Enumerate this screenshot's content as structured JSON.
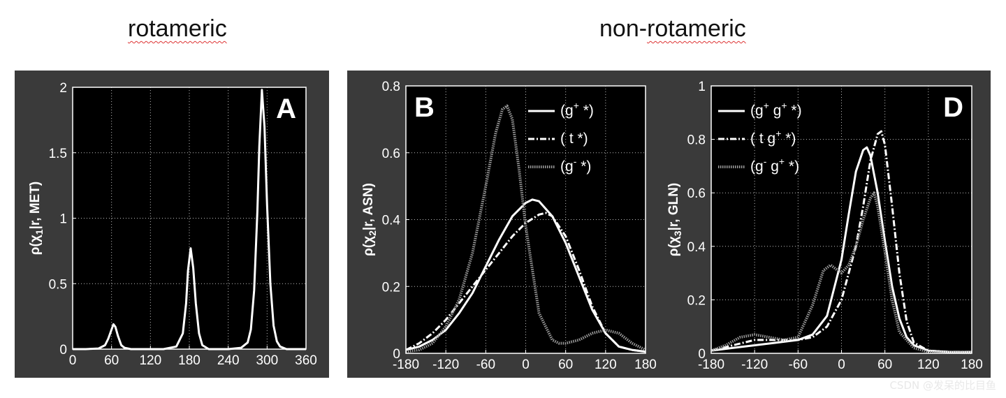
{
  "headings": {
    "left": "rotameric",
    "right": "non-rotameric"
  },
  "watermark": "CSDN @发呆的比目鱼",
  "colors": {
    "panel_bg": "#3a3a3a",
    "plot_bg": "#000000",
    "line": "#ffffff",
    "dotted_line": "#9a9a9a"
  },
  "chart_data": [
    {
      "type": "line",
      "panel_label": "A",
      "ylabel": "ρ(χ1|r, MET)",
      "xlim": [
        0,
        360
      ],
      "ylim": [
        0,
        2
      ],
      "xticks": [
        0,
        60,
        120,
        180,
        240,
        300,
        360
      ],
      "yticks": [
        0,
        0.5,
        1,
        1.5,
        2
      ],
      "ytick_labels": [
        "0",
        "0.5",
        "1",
        "1.5",
        "2"
      ],
      "grid": true,
      "series": [
        {
          "style": "solid",
          "x": [
            0,
            20,
            40,
            50,
            55,
            60,
            63,
            66,
            70,
            75,
            80,
            90,
            100,
            120,
            140,
            160,
            170,
            175,
            178,
            182,
            186,
            190,
            195,
            200,
            210,
            220,
            240,
            260,
            270,
            275,
            280,
            285,
            288,
            292,
            296,
            300,
            305,
            310,
            315,
            320,
            330,
            340,
            360
          ],
          "y": [
            0,
            0,
            0.005,
            0.03,
            0.08,
            0.15,
            0.19,
            0.17,
            0.1,
            0.03,
            0.01,
            0,
            0,
            0,
            0,
            0.02,
            0.12,
            0.35,
            0.6,
            0.77,
            0.62,
            0.35,
            0.12,
            0.03,
            0,
            0,
            0,
            0.01,
            0.05,
            0.15,
            0.45,
            1.05,
            1.55,
            1.98,
            1.7,
            1.1,
            0.5,
            0.18,
            0.06,
            0.02,
            0,
            0,
            0
          ]
        }
      ]
    },
    {
      "type": "line",
      "panel_label": "B",
      "ylabel": "ρ(χ2|r, ASN)",
      "xlim": [
        -180,
        180
      ],
      "ylim": [
        0,
        0.8
      ],
      "xticks": [
        -180,
        -120,
        -60,
        0,
        60,
        120,
        180
      ],
      "yticks": [
        0,
        0.2,
        0.4,
        0.6,
        0.8
      ],
      "ytick_labels": [
        "0",
        "0.2",
        "0.4",
        "0.6",
        "0.8"
      ],
      "grid": true,
      "legend": {
        "position": "top-right",
        "entries": [
          {
            "label": "(g+ *)",
            "base": "(g",
            "sup": "+",
            "rest": " *)",
            "style": "solid"
          },
          {
            "label": "( t *)",
            "base": "( t *)",
            "sup": "",
            "rest": "",
            "style": "dashdot"
          },
          {
            "label": "(g- *)",
            "base": "(g",
            "sup": "-",
            "rest": " *)",
            "style": "dotted"
          }
        ]
      },
      "series": [
        {
          "name": "(g+ *)",
          "style": "solid",
          "x": [
            -180,
            -160,
            -140,
            -120,
            -100,
            -80,
            -60,
            -40,
            -20,
            0,
            10,
            20,
            40,
            60,
            80,
            100,
            120,
            140,
            160,
            180
          ],
          "y": [
            0.01,
            0.02,
            0.04,
            0.07,
            0.12,
            0.18,
            0.26,
            0.34,
            0.41,
            0.45,
            0.46,
            0.455,
            0.41,
            0.33,
            0.23,
            0.13,
            0.06,
            0.02,
            0.01,
            0.005
          ]
        },
        {
          "name": "( t *)",
          "style": "dashdot",
          "x": [
            -180,
            -160,
            -140,
            -120,
            -100,
            -80,
            -60,
            -40,
            -20,
            0,
            20,
            30,
            40,
            60,
            80,
            100,
            120,
            140,
            160,
            180
          ],
          "y": [
            0.01,
            0.03,
            0.06,
            0.1,
            0.15,
            0.2,
            0.25,
            0.3,
            0.35,
            0.39,
            0.415,
            0.42,
            0.41,
            0.35,
            0.25,
            0.14,
            0.06,
            0.02,
            0.01,
            0.005
          ]
        },
        {
          "name": "(g- *)",
          "style": "dotted",
          "x": [
            -180,
            -160,
            -140,
            -120,
            -100,
            -80,
            -60,
            -45,
            -35,
            -28,
            -20,
            -10,
            0,
            20,
            40,
            50,
            60,
            80,
            100,
            120,
            140,
            160,
            180
          ],
          "y": [
            0.005,
            0.01,
            0.03,
            0.08,
            0.16,
            0.3,
            0.5,
            0.66,
            0.73,
            0.74,
            0.7,
            0.55,
            0.38,
            0.12,
            0.04,
            0.03,
            0.03,
            0.04,
            0.06,
            0.07,
            0.06,
            0.03,
            0.01
          ]
        }
      ]
    },
    {
      "type": "line",
      "panel_label": "D",
      "ylabel": "ρ(χ3|r, GLN)",
      "xlim": [
        -180,
        180
      ],
      "ylim": [
        0,
        1
      ],
      "xticks": [
        -180,
        -120,
        -60,
        0,
        60,
        120,
        180
      ],
      "yticks": [
        0,
        0.2,
        0.4,
        0.6,
        0.8,
        1
      ],
      "ytick_labels": [
        "0",
        "0.2",
        "0.4",
        "0.6",
        "0.8",
        "1"
      ],
      "grid": true,
      "legend": {
        "position": "top-left",
        "entries": [
          {
            "label": "(g+ g+ *)",
            "base": "(g",
            "sup": "+",
            "rest": " g",
            "sup2": "+",
            "rest2": " *)",
            "style": "solid"
          },
          {
            "label": "( t g+ *)",
            "base": "( t g",
            "sup": "+",
            "rest": " *)",
            "sup2": "",
            "rest2": "",
            "style": "dashdot"
          },
          {
            "label": "(g- g+ *)",
            "base": "(g",
            "sup": "-",
            "rest": " g",
            "sup2": "+",
            "rest2": " *)",
            "style": "dotted"
          }
        ]
      },
      "series": [
        {
          "name": "(g+ g+ *)",
          "style": "solid",
          "x": [
            -180,
            -150,
            -120,
            -90,
            -60,
            -40,
            -20,
            0,
            10,
            20,
            30,
            35,
            40,
            50,
            60,
            70,
            80,
            90,
            100,
            120,
            150,
            180
          ],
          "y": [
            0.01,
            0.02,
            0.03,
            0.04,
            0.05,
            0.07,
            0.14,
            0.35,
            0.52,
            0.68,
            0.76,
            0.77,
            0.74,
            0.6,
            0.42,
            0.25,
            0.13,
            0.06,
            0.03,
            0.01,
            0.005,
            0.005
          ]
        },
        {
          "name": "( t g+ *)",
          "style": "dashdot",
          "x": [
            -180,
            -150,
            -120,
            -90,
            -60,
            -40,
            -20,
            0,
            20,
            30,
            40,
            50,
            55,
            60,
            70,
            80,
            90,
            100,
            120,
            150,
            180
          ],
          "y": [
            0.01,
            0.03,
            0.05,
            0.05,
            0.05,
            0.06,
            0.1,
            0.2,
            0.4,
            0.55,
            0.72,
            0.82,
            0.83,
            0.78,
            0.55,
            0.3,
            0.12,
            0.04,
            0.01,
            0.005,
            0.005
          ]
        },
        {
          "name": "(g- g+ *)",
          "style": "dotted",
          "x": [
            -180,
            -160,
            -140,
            -120,
            -100,
            -80,
            -60,
            -40,
            -25,
            -15,
            -5,
            0,
            10,
            20,
            30,
            40,
            45,
            50,
            60,
            70,
            80,
            100,
            120,
            150,
            180
          ],
          "y": [
            0.01,
            0.03,
            0.06,
            0.07,
            0.06,
            0.05,
            0.06,
            0.18,
            0.31,
            0.33,
            0.31,
            0.3,
            0.33,
            0.4,
            0.5,
            0.58,
            0.6,
            0.55,
            0.38,
            0.2,
            0.08,
            0.02,
            0.005,
            0.003,
            0.002
          ]
        }
      ]
    }
  ]
}
